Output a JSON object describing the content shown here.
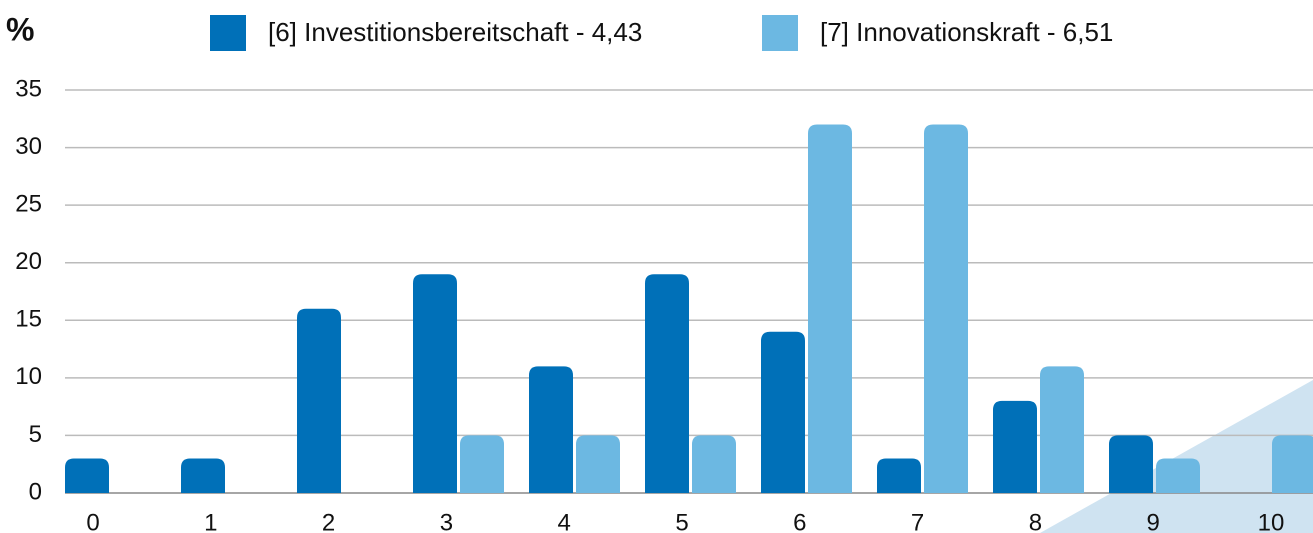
{
  "chart_data": {
    "type": "bar",
    "y_label": "%",
    "categories": [
      "0",
      "1",
      "2",
      "3",
      "4",
      "5",
      "6",
      "7",
      "8",
      "9",
      "10"
    ],
    "series": [
      {
        "name": "[6] Investitionsbereitschaft - 4,43",
        "color": "#0070b8",
        "values": [
          3,
          3,
          16,
          19,
          11,
          19,
          14,
          3,
          8,
          5,
          0
        ]
      },
      {
        "name": "[7] Innovationskraft - 6,51",
        "color": "#6cb8e2",
        "values": [
          0,
          0,
          0,
          5,
          5,
          5,
          32,
          32,
          11,
          3,
          5
        ]
      }
    ],
    "ylim": [
      0,
      35
    ],
    "yticks": [
      0,
      5,
      10,
      15,
      20,
      25,
      30,
      35
    ],
    "grid": true,
    "legend": "top"
  }
}
